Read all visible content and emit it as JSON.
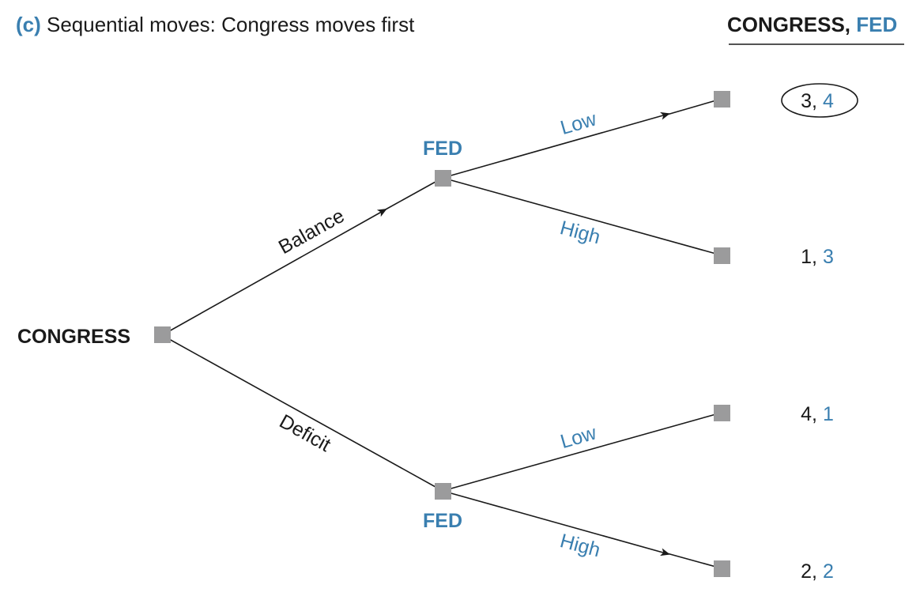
{
  "caption": {
    "prefix": "(c)",
    "text": " Sequential moves: Congress moves first"
  },
  "payoff_header": {
    "player1": "CONGRESS,",
    "player2": " FED"
  },
  "root": {
    "label": "CONGRESS"
  },
  "fed_nodes": {
    "upper_label": "FED",
    "lower_label": "FED"
  },
  "moves": {
    "balance": "Balance",
    "deficit": "Deficit",
    "upper_low": "Low",
    "upper_high": "High",
    "lower_low": "Low",
    "lower_high": "High"
  },
  "payoffs": [
    {
      "congress": "3,",
      "fed": " 4",
      "circled": true
    },
    {
      "congress": "1,",
      "fed": " 3",
      "circled": false
    },
    {
      "congress": "4,",
      "fed": " 1",
      "circled": false
    },
    {
      "congress": "2,",
      "fed": " 2",
      "circled": false
    }
  ],
  "colors": {
    "accent": "#3a7fb0",
    "text": "#1a1a1a",
    "node": "#9b9b9c"
  }
}
